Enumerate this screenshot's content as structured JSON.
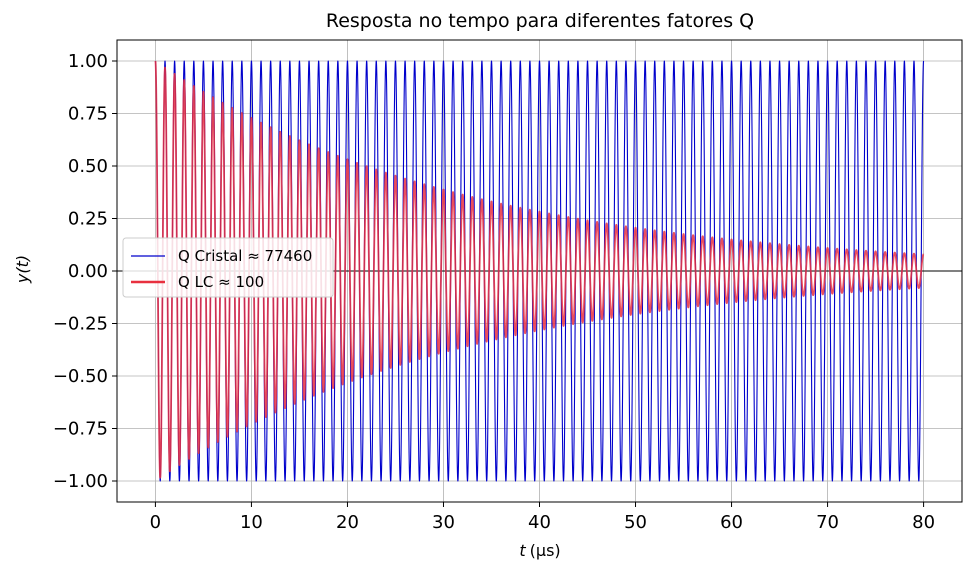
{
  "chart_data": {
    "type": "line",
    "title": "Resposta no tempo para diferentes fatores Q",
    "xlabel_var": "t",
    "xlabel_unit": "(μs)",
    "ylabel": "y(t)",
    "xlim": [
      -4,
      84
    ],
    "ylim": [
      -1.1,
      1.1
    ],
    "xticks": [
      0,
      10,
      20,
      30,
      40,
      50,
      60,
      70,
      80
    ],
    "xtick_labels": [
      "0",
      "10",
      "20",
      "30",
      "40",
      "50",
      "60",
      "70",
      "80"
    ],
    "yticks": [
      1.0,
      0.75,
      0.5,
      0.25,
      0.0,
      -0.25,
      -0.5,
      -0.75,
      -1.0
    ],
    "ytick_labels": [
      "1.00",
      "0.75",
      "0.50",
      "0.25",
      "0.00",
      "−0.25",
      "−0.50",
      "−0.75",
      "−1.00"
    ],
    "grid": true,
    "zero_line": true,
    "legend_position": "center-left",
    "series": [
      {
        "name": "Q Cristal ≈ 77460",
        "color": "#0000cc",
        "frequency_mhz": 1.0,
        "amplitude_at_80us": 1.0,
        "t_range": [
          0,
          80
        ],
        "curve": "cos"
      },
      {
        "name": "Q LC ≈ 100",
        "color": "#e8303f",
        "frequency_mhz": 1.0,
        "amplitude_at_80us": 0.08,
        "t_range": [
          0,
          80
        ],
        "curve": "cos"
      }
    ]
  }
}
